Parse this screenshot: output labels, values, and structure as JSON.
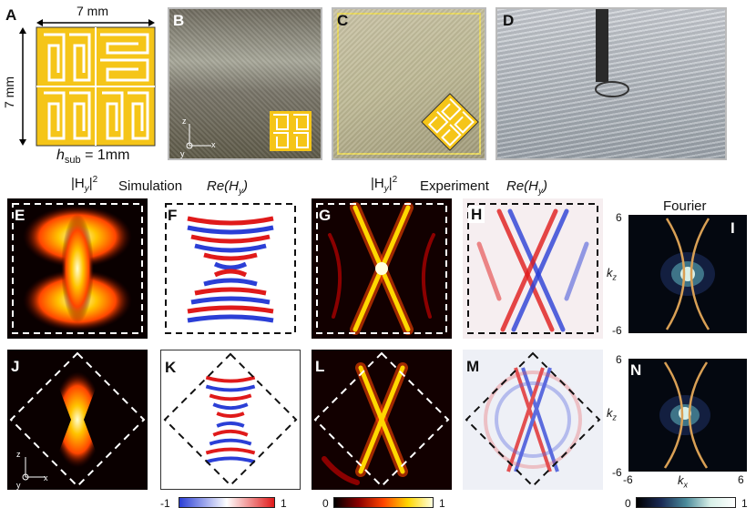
{
  "panel_a": {
    "label": "A",
    "width_dim": "7 mm",
    "height_dim": "7 mm",
    "substrate": "h",
    "substrate_sub": "sub",
    "substrate_value": " = 1mm"
  },
  "photos": [
    {
      "label": "B",
      "axis_z": "z",
      "axis_x": "x",
      "axis_y": "y"
    },
    {
      "label": "C"
    },
    {
      "label": "D"
    }
  ],
  "row_titles": {
    "sim_intensity": "|H",
    "sim_intensity_sub": "y",
    "sim_intensity_sup": "2",
    "simulation": "Simulation",
    "sim_re": "Re(H",
    "sim_re_sub": "y",
    "sim_re_close": ")",
    "exp_intensity": "|H",
    "exp_intensity_sub": "y",
    "exp_intensity_sup": "2",
    "experiment": "Experiment",
    "exp_re": "Re(H",
    "exp_re_sub": "y",
    "exp_re_close": ")",
    "fourier": "Fourier"
  },
  "maps_row1": [
    {
      "label": "E",
      "kind": "heat-hourglass"
    },
    {
      "label": "F",
      "kind": "wave-horizontal"
    },
    {
      "label": "G",
      "kind": "heat-x"
    },
    {
      "label": "H",
      "kind": "wave-x"
    },
    {
      "label": "I",
      "kind": "fourier"
    }
  ],
  "maps_row2": [
    {
      "label": "J",
      "kind": "heat-diamond"
    },
    {
      "label": "K",
      "kind": "wave-diamond"
    },
    {
      "label": "L",
      "kind": "heat-x-diamond"
    },
    {
      "label": "M",
      "kind": "wave-x-diamond"
    },
    {
      "label": "N",
      "kind": "fourier"
    }
  ],
  "fourier_axes": {
    "kz": "k",
    "kz_sub": "z",
    "kx": "k",
    "kx_sub": "x",
    "kz_top": "6",
    "kz_bottom": "-6",
    "kx_left": "-6",
    "kx_right": "6",
    "kz_top2": "6",
    "kz_bottom2": "-6"
  },
  "axes_j": {
    "z": "z",
    "x": "x",
    "y": "y"
  },
  "colorbars": [
    {
      "min": "-1",
      "max": "1",
      "colors": [
        "#2b3fd6",
        "#ffffff",
        "#e01a1a"
      ]
    },
    {
      "min": "0",
      "max": "1",
      "colors": [
        "#000000",
        "#8b0000",
        "#ff4500",
        "#ffd700",
        "#ffffe0"
      ]
    },
    {
      "min": "0",
      "max": "1",
      "colors": [
        "#000000",
        "#1a2a55",
        "#4a8a9a",
        "#d8f0e8",
        "#ffffff"
      ]
    }
  ],
  "colors": {
    "gold": "#f5c518",
    "fourier_curve": "#d9a055"
  }
}
